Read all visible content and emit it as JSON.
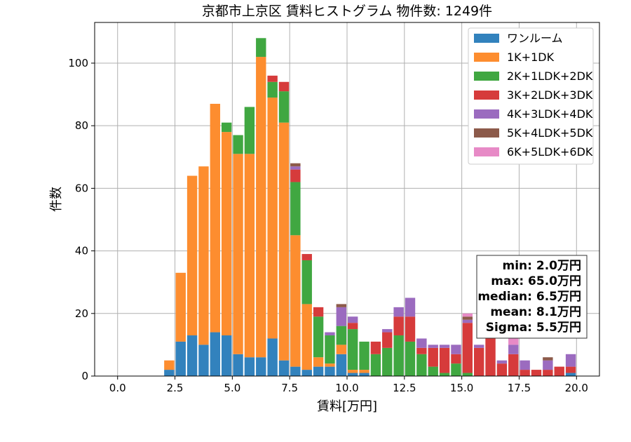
{
  "chart_data": {
    "type": "bar",
    "stacked": true,
    "title": "京都市上京区 賃料ヒストグラム 物件数: 1249件",
    "xlabel": "賃料[万円]",
    "ylabel": "件数",
    "xlim": [
      -1.0,
      21.0
    ],
    "ylim": [
      0,
      113
    ],
    "xticks": [
      0.0,
      2.5,
      5.0,
      7.5,
      10.0,
      12.5,
      15.0,
      17.5,
      20.0
    ],
    "xtick_labels": [
      "0.0",
      "2.5",
      "5.0",
      "7.5",
      "10.0",
      "12.5",
      "15.0",
      "17.5",
      "20.0"
    ],
    "yticks": [
      0,
      20,
      40,
      60,
      80,
      100
    ],
    "ytick_labels": [
      "0",
      "20",
      "40",
      "60",
      "80",
      "100"
    ],
    "grid": true,
    "legend_position": "top-right",
    "bin_width": 0.5,
    "x": [
      2.0,
      2.5,
      3.0,
      3.5,
      4.0,
      4.5,
      5.0,
      5.5,
      6.0,
      6.5,
      7.0,
      7.5,
      8.0,
      8.5,
      9.0,
      9.5,
      10.0,
      10.5,
      11.0,
      11.5,
      12.0,
      12.5,
      13.0,
      13.5,
      14.0,
      14.5,
      15.0,
      15.5,
      16.0,
      16.5,
      17.0,
      17.5,
      18.0,
      18.5,
      19.0,
      19.5
    ],
    "series": [
      {
        "name": "ワンルーム",
        "color": "#3282bd",
        "values": [
          2,
          11,
          13,
          10,
          14,
          13,
          7,
          6,
          6,
          12,
          5,
          3,
          2,
          3,
          3,
          7,
          1,
          1,
          0,
          0,
          0,
          0,
          0,
          0,
          0,
          0,
          0,
          0,
          0,
          0,
          0,
          0,
          0,
          0,
          0,
          1
        ]
      },
      {
        "name": "1K+1DK",
        "color": "#fd8d2f",
        "values": [
          3,
          22,
          51,
          57,
          73,
          65,
          64,
          65,
          96,
          77,
          76,
          42,
          21,
          3,
          1,
          3,
          1,
          1,
          0,
          0,
          0,
          0,
          0,
          0,
          0,
          0,
          0,
          0,
          0,
          0,
          0,
          0,
          0,
          0,
          0,
          0
        ]
      },
      {
        "name": "2K+1LDK+2DK",
        "color": "#40a741",
        "values": [
          0,
          0,
          0,
          0,
          0,
          3,
          6,
          15,
          6,
          5,
          10,
          17,
          14,
          13,
          9,
          6,
          13,
          9,
          7,
          9,
          13,
          11,
          7,
          3,
          1,
          4,
          1,
          0,
          0,
          0,
          0,
          0,
          0,
          0,
          0,
          0
        ]
      },
      {
        "name": "3K+2LDK+3DK",
        "color": "#d63b3b",
        "values": [
          0,
          0,
          0,
          0,
          0,
          0,
          0,
          0,
          0,
          2,
          3,
          4,
          2,
          3,
          0,
          0,
          2,
          0,
          4,
          5,
          6,
          8,
          2,
          6,
          8,
          3,
          16,
          9,
          12,
          4,
          7,
          2,
          2,
          2,
          3,
          2
        ]
      },
      {
        "name": "4K+3LDK+4DK",
        "color": "#9b6bbf",
        "values": [
          0,
          0,
          0,
          0,
          0,
          0,
          0,
          0,
          0,
          0,
          0,
          1,
          0,
          0,
          1,
          6,
          2,
          0,
          0,
          1,
          3,
          6,
          3,
          1,
          1,
          3,
          1,
          1,
          0,
          1,
          3,
          3,
          0,
          3,
          0,
          4
        ]
      },
      {
        "name": "5K+4LDK+5DK",
        "color": "#8c5a4a",
        "values": [
          0,
          0,
          0,
          0,
          0,
          0,
          0,
          0,
          0,
          0,
          0,
          1,
          0,
          0,
          0,
          1,
          0,
          0,
          0,
          0,
          0,
          0,
          0,
          0,
          0,
          0,
          1,
          0,
          0,
          0,
          0,
          0,
          0,
          1,
          0,
          0
        ]
      },
      {
        "name": "6K+5LDK+6DK",
        "color": "#e78ac6",
        "values": [
          0,
          0,
          0,
          0,
          0,
          0,
          0,
          0,
          0,
          0,
          0,
          0,
          0,
          0,
          0,
          0,
          0,
          0,
          0,
          0,
          0,
          0,
          0,
          0,
          0,
          0,
          1,
          0,
          0,
          0,
          2,
          0,
          0,
          0,
          0,
          0
        ]
      }
    ],
    "stats": {
      "min": "min: 2.0万円",
      "max": "max: 65.0万円",
      "median": "median: 6.5万円",
      "mean": "mean: 8.1万円",
      "sigma": "Sigma: 5.5万円"
    }
  }
}
